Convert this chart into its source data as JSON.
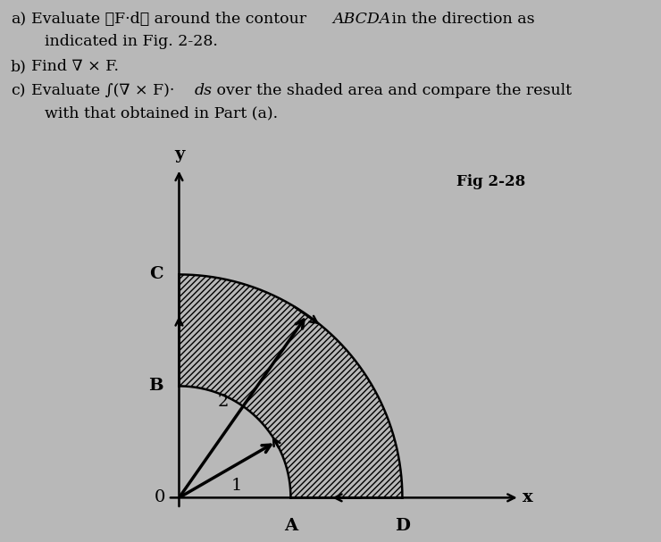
{
  "background_color": "#b8b8b8",
  "text_bg_color": "#c0c0c0",
  "fig_label": "Fig 2-28",
  "r_inner": 1.0,
  "r_outer": 2.0,
  "label_fontsize": 14,
  "fig_label_fontsize": 12,
  "xlim": [
    -0.25,
    3.2
  ],
  "ylim": [
    -0.3,
    3.1
  ],
  "hatch_color": "#000000",
  "shaded_face_color": "#b8b8b8"
}
